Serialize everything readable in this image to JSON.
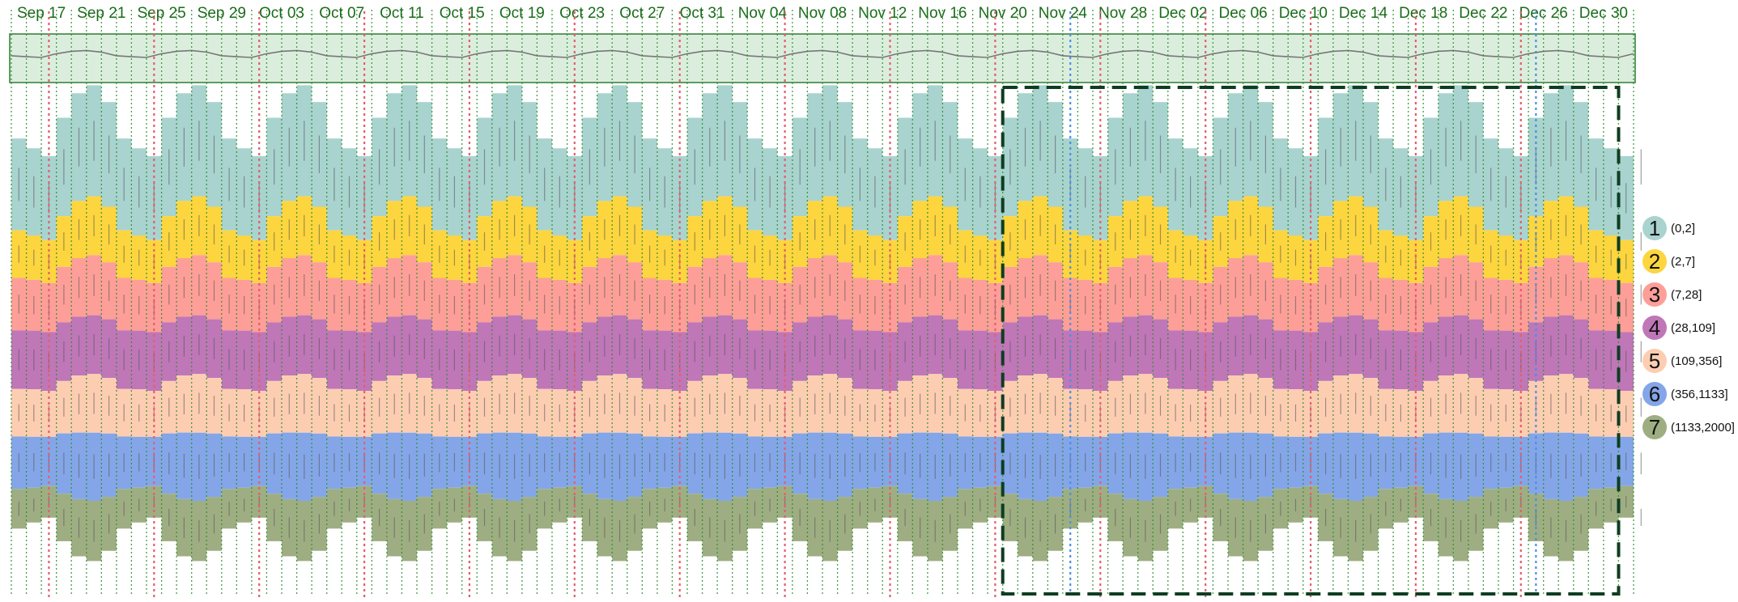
{
  "chart_data": {
    "type": "area",
    "subtype": "stacked-bin-streamgraph-with-overview",
    "title": "",
    "xlabel": "",
    "ylabel": "",
    "x_range": [
      "2023-09-15",
      "2024-01-01"
    ],
    "tick_labels": [
      "Sep 17",
      "Sep 21",
      "Sep 25",
      "Sep 29",
      "Oct 03",
      "Oct 07",
      "Oct 11",
      "Oct 15",
      "Oct 19",
      "Oct 23",
      "Oct 27",
      "Oct 31",
      "Nov 04",
      "Nov 08",
      "Nov 12",
      "Nov 16",
      "Nov 20",
      "Nov 24",
      "Nov 28",
      "Dec 02",
      "Dec 06",
      "Dec 10",
      "Dec 14",
      "Dec 18",
      "Dec 22",
      "Dec 26",
      "Dec 30"
    ],
    "legend": {
      "placement": "right",
      "items": [
        {
          "num": "1",
          "label": "(0,2]",
          "color": "#a9d3cf"
        },
        {
          "num": "2",
          "label": "(2,7]",
          "color": "#fdd53e"
        },
        {
          "num": "3",
          "label": "(7,28]",
          "color": "#fd9f98"
        },
        {
          "num": "4",
          "label": "(28,109]",
          "color": "#bf77b8"
        },
        {
          "num": "5",
          "label": "(109,356]",
          "color": "#fdcdb2"
        },
        {
          "num": "6",
          "label": "(356,1133]",
          "color": "#84a6e8"
        },
        {
          "num": "7",
          "label": "(1133,2000]",
          "color": "#9eae82"
        }
      ]
    },
    "series": [
      {
        "name": "(0,2]",
        "pattern": [
          0.58,
          0.55,
          0.53,
          0.62,
          0.68,
          0.7,
          0.66,
          0.6
        ]
      },
      {
        "name": "(2,7]",
        "pattern": [
          0.3,
          0.28,
          0.27,
          0.32,
          0.36,
          0.37,
          0.35,
          0.31
        ]
      },
      {
        "name": "(7,28]",
        "pattern": [
          0.33,
          0.32,
          0.31,
          0.35,
          0.37,
          0.38,
          0.36,
          0.34
        ]
      },
      {
        "name": "(28,109]",
        "pattern": [
          0.37,
          0.37,
          0.37,
          0.37,
          0.37,
          0.37,
          0.37,
          0.37
        ]
      },
      {
        "name": "(109,356]",
        "pattern": [
          0.3,
          0.3,
          0.29,
          0.33,
          0.36,
          0.37,
          0.35,
          0.31
        ]
      },
      {
        "name": "(356,1133]",
        "pattern": [
          0.33,
          0.32,
          0.31,
          0.38,
          0.42,
          0.43,
          0.4,
          0.35
        ]
      },
      {
        "name": "(1133,2000]",
        "pattern": [
          0.25,
          0.22,
          0.2,
          0.3,
          0.36,
          0.38,
          0.34,
          0.27
        ]
      }
    ],
    "pattern_period_days": 7,
    "vertical_markers": {
      "weekly_red_dates": [
        "2023-09-17",
        "2023-09-24",
        "2023-10-01",
        "2023-10-08",
        "2023-10-15",
        "2023-10-22",
        "2023-10-29",
        "2023-11-05",
        "2023-11-12",
        "2023-11-19",
        "2023-11-26",
        "2023-12-03",
        "2023-12-10",
        "2023-12-17",
        "2023-12-24"
      ],
      "blue_dates": [
        "2023-11-24",
        "2023-12-25"
      ]
    },
    "selection": {
      "start": "2023-11-20",
      "end": "2023-12-31"
    },
    "overview": {
      "line_color": "#777777",
      "fill": "#dbeedd",
      "stroke": "#2e7d32"
    },
    "grid": true,
    "colors": {
      "tick_text": "#1a6b1a",
      "green_grid": "#2a8a2a",
      "red_marker": "#e0606a",
      "blue_marker": "#4a8fe0",
      "selection_stroke": "#0f3d22"
    }
  }
}
